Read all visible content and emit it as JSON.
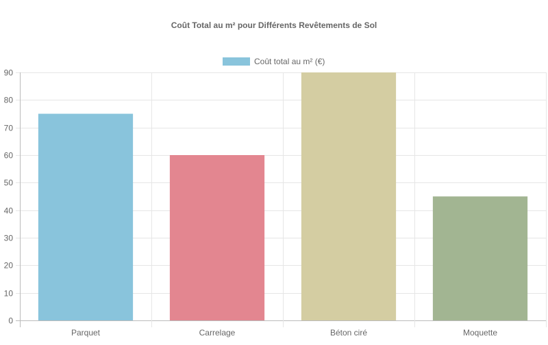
{
  "chart_data": {
    "type": "bar",
    "title": "Coût Total au m² pour Différents Revêtements de Sol",
    "categories": [
      "Parquet",
      "Carrelage",
      "Béton ciré",
      "Moquette"
    ],
    "series": [
      {
        "name": "Coût total au m² (€)",
        "values": [
          75,
          60,
          90,
          45
        ]
      }
    ],
    "bar_colors": [
      "#89c4dc",
      "#e38690",
      "#d4cda2",
      "#a2b592"
    ],
    "legend_color": "#89c4dc",
    "xlabel": "",
    "ylabel": "",
    "ylim": [
      0,
      90
    ],
    "y_ticks": [
      0,
      10,
      20,
      30,
      40,
      50,
      60,
      70,
      80,
      90
    ],
    "grid": true,
    "legend_position": "top"
  }
}
